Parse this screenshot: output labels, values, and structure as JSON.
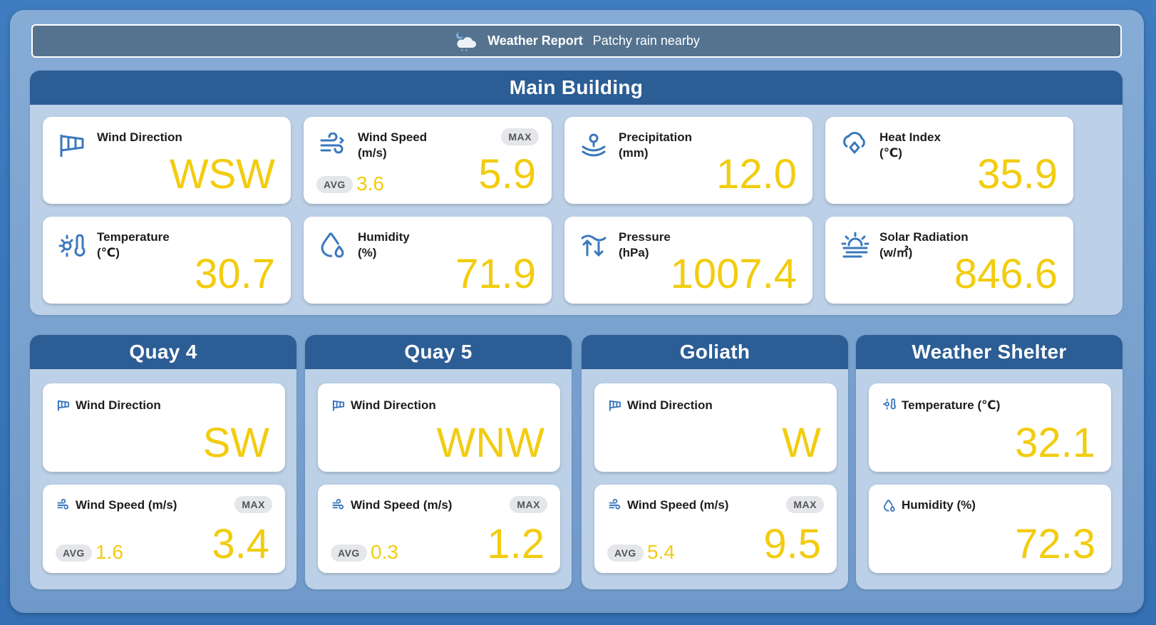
{
  "header": {
    "title": "Weather Report",
    "condition": "Patchy rain nearby"
  },
  "main": {
    "title": "Main Building",
    "wind_direction": {
      "label": "Wind Direction",
      "value": "WSW"
    },
    "wind_speed": {
      "label": "Wind Speed",
      "unit": "(m/s)",
      "value": "5.9",
      "max_label": "MAX",
      "avg_label": "AVG",
      "avg_value": "3.6"
    },
    "precipitation": {
      "label": "Precipitation",
      "unit": "(mm)",
      "value": "12.0"
    },
    "heat_index": {
      "label": "Heat Index",
      "unit": "(℃)",
      "value": "35.9"
    },
    "temperature": {
      "label": "Temperature",
      "unit": "(℃)",
      "value": "30.7"
    },
    "humidity": {
      "label": "Humidity",
      "unit": "(%)",
      "value": "71.9"
    },
    "pressure": {
      "label": "Pressure",
      "unit": "(hPa)",
      "value": "1007.4"
    },
    "solar": {
      "label": "Solar Radiation",
      "unit": "(w/㎡)",
      "value": "846.6"
    }
  },
  "quay4": {
    "title": "Quay 4",
    "wind_direction": {
      "label": "Wind Direction",
      "value": "SW"
    },
    "wind_speed": {
      "label": "Wind Speed (m/s)",
      "value": "3.4",
      "max_label": "MAX",
      "avg_label": "AVG",
      "avg_value": "1.6"
    }
  },
  "quay5": {
    "title": "Quay 5",
    "wind_direction": {
      "label": "Wind Direction",
      "value": "WNW"
    },
    "wind_speed": {
      "label": "Wind Speed (m/s)",
      "value": "1.2",
      "max_label": "MAX",
      "avg_label": "AVG",
      "avg_value": "0.3"
    }
  },
  "goliath": {
    "title": "Goliath",
    "wind_direction": {
      "label": "Wind Direction",
      "value": "W"
    },
    "wind_speed": {
      "label": "Wind Speed (m/s)",
      "value": "9.5",
      "max_label": "MAX",
      "avg_label": "AVG",
      "avg_value": "5.4"
    }
  },
  "shelter": {
    "title": "Weather Shelter",
    "temperature": {
      "label": "Temperature (℃)",
      "value": "32.1"
    },
    "humidity": {
      "label": "Humidity (%)",
      "value": "72.3"
    }
  },
  "colors": {
    "accent": "#2c5d95",
    "value": "#f2cc0f",
    "icon": "#3a78bd"
  },
  "icons": [
    "weather-cloud-moon-icon",
    "windsock-icon",
    "wind-icon",
    "precipitation-icon",
    "heat-index-icon",
    "temperature-icon",
    "humidity-icon",
    "pressure-icon",
    "solar-icon"
  ]
}
